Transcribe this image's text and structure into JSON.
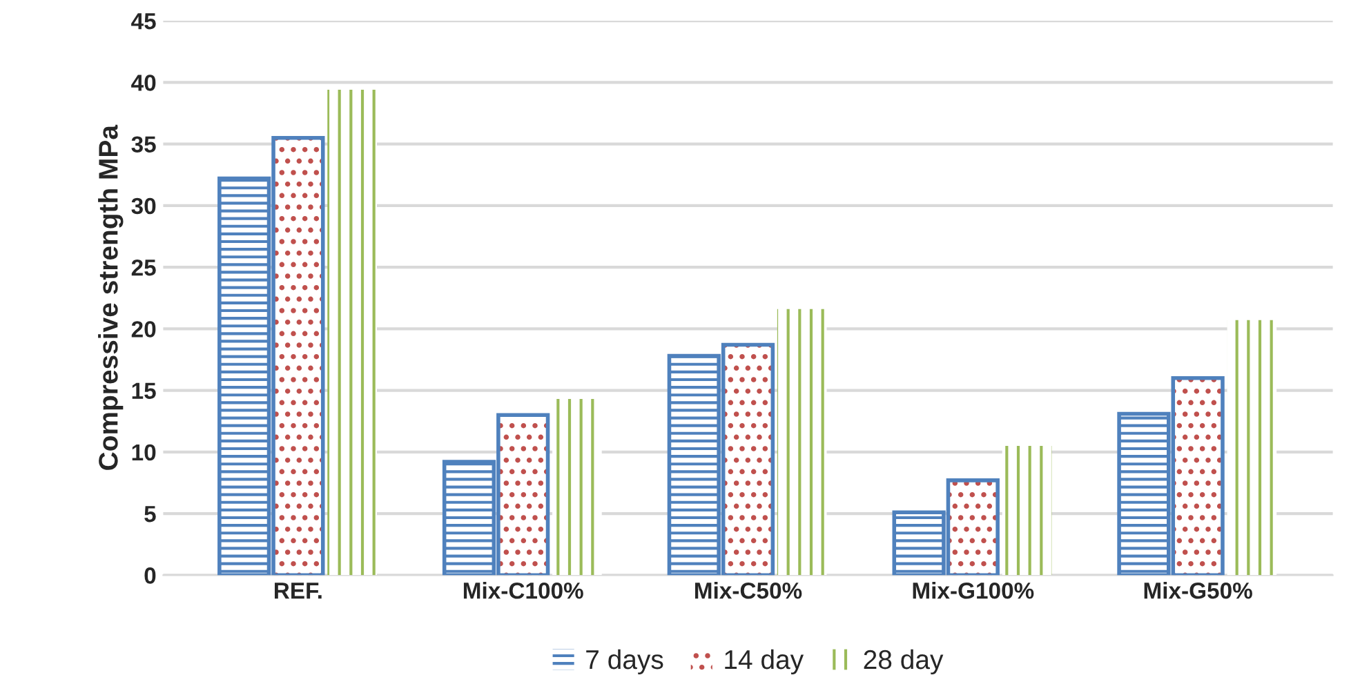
{
  "chart_data": {
    "type": "bar",
    "ylabel": "Compressive strength MPa",
    "categories": [
      "REF.",
      "Mix-C100%",
      "Mix-C50%",
      "Mix-G100%",
      "Mix-G50%"
    ],
    "series": [
      {
        "name": "7 days",
        "color": "#4f81bd",
        "values": [
          32.2,
          9.2,
          17.8,
          5.1,
          13.1
        ]
      },
      {
        "name": "14 day",
        "color": "#c0504d",
        "values": [
          35.5,
          13.0,
          18.7,
          7.7,
          16.0
        ]
      },
      {
        "name": "28 day",
        "color": "#9bbb59",
        "values": [
          39.4,
          14.3,
          21.6,
          10.5,
          20.7
        ]
      }
    ],
    "ylim": [
      0,
      45
    ],
    "yticks": [
      0,
      5,
      10,
      15,
      20,
      25,
      30,
      35,
      40,
      45
    ],
    "grid": "y",
    "legend": "bottom"
  }
}
